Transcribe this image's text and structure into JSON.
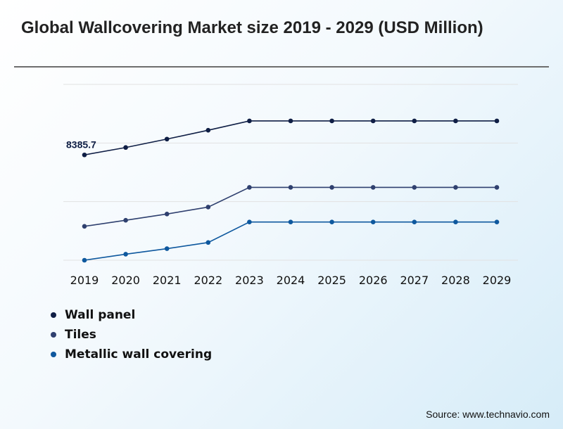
{
  "title": "Global Wallcovering Market size 2019 - 2029 (USD Million)",
  "source": "Source: www.technavio.com",
  "chart_data": {
    "type": "line",
    "title": "Global Wallcovering Market size 2019 - 2029 (USD Million)",
    "xlabel": "",
    "ylabel": "",
    "categories": [
      "2019",
      "2020",
      "2021",
      "2022",
      "2023",
      "2024",
      "2025",
      "2026",
      "2027",
      "2028",
      "2029"
    ],
    "y_tick_labels_shown": false,
    "grid": true,
    "legend_placement": "bottom-left",
    "ylim": [
      0,
      14000
    ],
    "series": [
      {
        "name": "Wall panel",
        "color": "#0f1e45",
        "values": [
          8385.7,
          8975,
          9645,
          10350,
          11090,
          11090,
          11090,
          11090,
          11090,
          11090,
          11090
        ],
        "data_labels": [
          "8385.7",
          "",
          "",
          "",
          "",
          "",
          "",
          "",
          "",
          "",
          ""
        ]
      },
      {
        "name": "Tiles",
        "color": "#2f406f",
        "values": [
          2700,
          3180,
          3680,
          4230,
          5800,
          5800,
          5800,
          5800,
          5800,
          5800,
          5800
        ]
      },
      {
        "name": "Metallic wall covering",
        "color": "#0e589e",
        "values": [
          0,
          480,
          920,
          1410,
          3040,
          3040,
          3040,
          3040,
          3040,
          3040,
          3040
        ]
      }
    ]
  }
}
